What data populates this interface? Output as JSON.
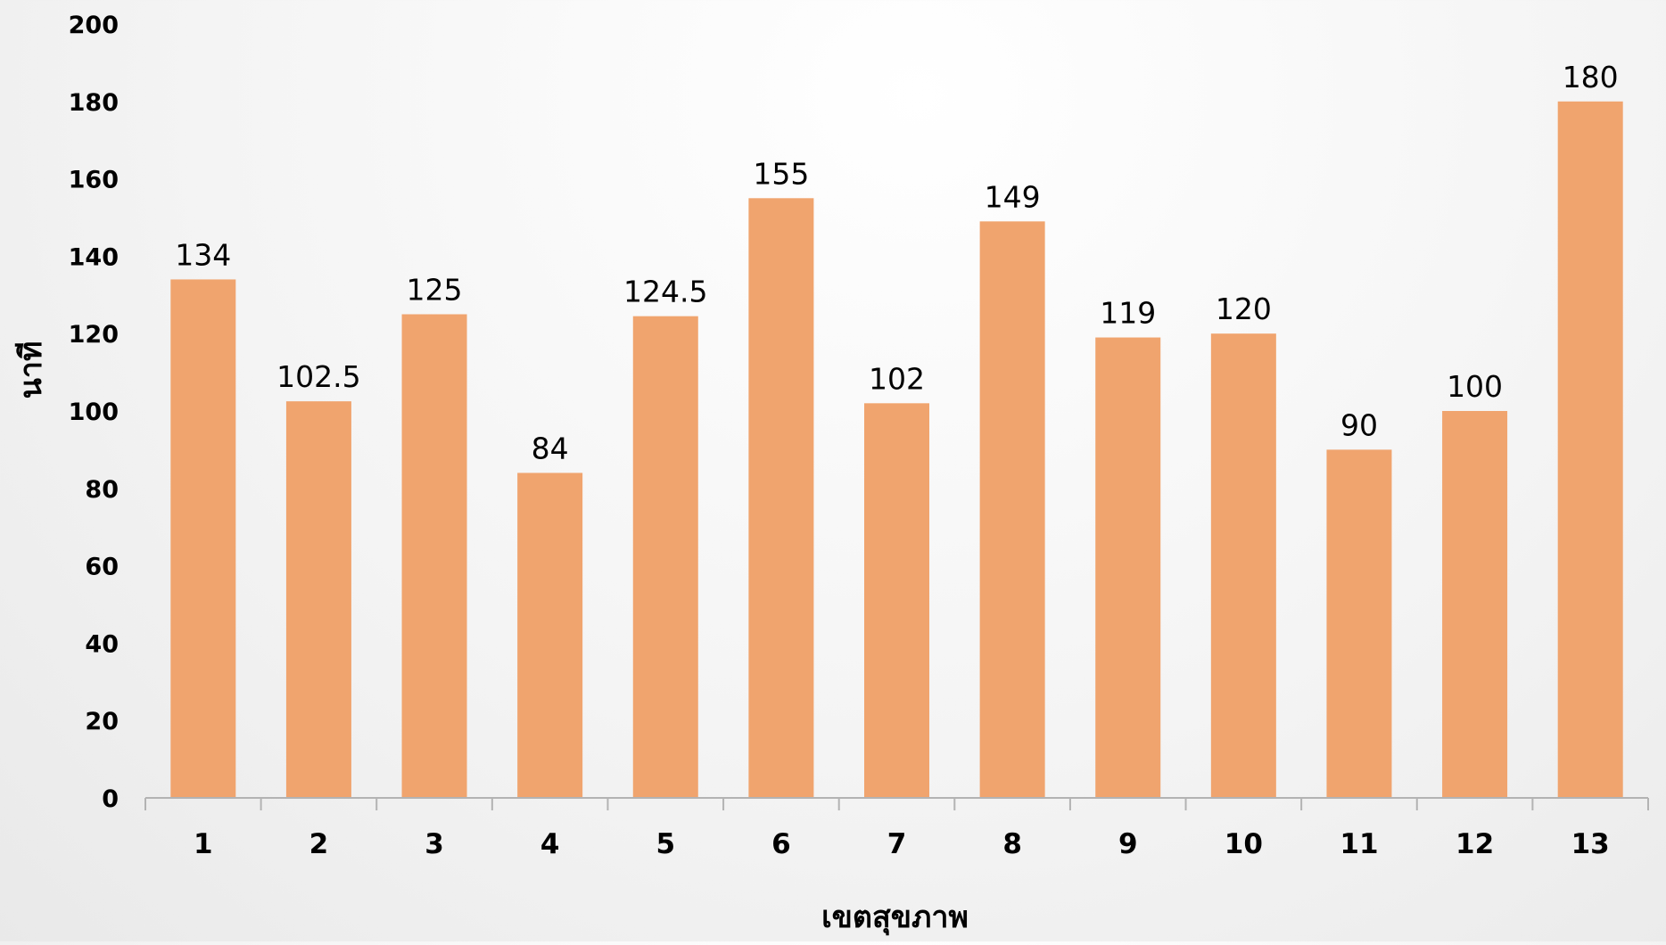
{
  "chart_data": {
    "type": "bar",
    "title": "",
    "xlabel": "เขตสุขภาพ",
    "ylabel": "นาที",
    "categories": [
      "1",
      "2",
      "3",
      "4",
      "5",
      "6",
      "7",
      "8",
      "9",
      "10",
      "11",
      "12",
      "13"
    ],
    "values": [
      134,
      102.5,
      125,
      84,
      124.5,
      155,
      102,
      149,
      119,
      120,
      90,
      100,
      180
    ],
    "data_labels": [
      "134",
      "102.5",
      "125",
      "84",
      "124.5",
      "155",
      "102",
      "149",
      "119",
      "120",
      "90",
      "100",
      "180"
    ],
    "ylim": [
      0,
      200
    ],
    "yticks": [
      0,
      20,
      40,
      60,
      80,
      100,
      120,
      140,
      160,
      180,
      200
    ],
    "grid": false,
    "legend": "none",
    "bar_color": "#F0A46E",
    "axis_color": "#B3B3B3"
  }
}
